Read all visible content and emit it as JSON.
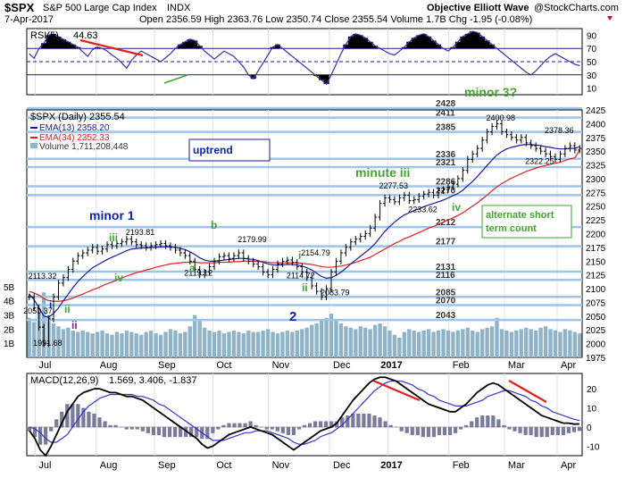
{
  "header": {
    "symbol": "$SPX",
    "name": "S&P 500 Large Cap Index",
    "exchange": "INDX",
    "date": "7-Apr-2017",
    "quote": "Open 2356.59  High 2363.76  Low 2350.74  Close 2355.54  Volume 1.7B  Chg -1.95 (-0.08%)",
    "source": "Objective Elliott Wave",
    "credit": "@StockCharts.com"
  },
  "colors": {
    "price_bar": "#000000",
    "ema13": "#1a1aa0",
    "ema34": "#e02020",
    "volume": "#8fb3c7",
    "rsi": "#3b2fb0",
    "rsi_fill": "#000000",
    "macd": "#000000",
    "macd_signal": "#3535d0",
    "hist": "#7a7a9a",
    "level_line": "#9ec5e8",
    "wave_blue": "#0a24b0",
    "wave_green": "#3fa62c",
    "wave_purple": "#8a1f8a",
    "trend_red": "#e02020",
    "box_border": "#1a1aa0"
  },
  "chart_data": [
    {
      "type": "line",
      "panel": "RSI",
      "title": "RSI(5) 44.63",
      "legend_label": "RSI(5)",
      "legend_value": "44.63",
      "ylim": [
        0,
        100
      ],
      "yticks": [
        10,
        30,
        50,
        70,
        90
      ],
      "reference_lines": [
        30,
        50,
        70
      ],
      "values": [
        62,
        55,
        70,
        78,
        90,
        92,
        88,
        84,
        80,
        76,
        72,
        65,
        58,
        68,
        72,
        70,
        66,
        60,
        55,
        48,
        40,
        52,
        60,
        66,
        62,
        58,
        54,
        50,
        56,
        62,
        70,
        76,
        80,
        84,
        82,
        74,
        66,
        60,
        54,
        60,
        66,
        62,
        58,
        50,
        42,
        30,
        24,
        36,
        48,
        60,
        72,
        76,
        70,
        64,
        58,
        52,
        46,
        40,
        34,
        28,
        22,
        16,
        30,
        46,
        62,
        76,
        88,
        92,
        90,
        86,
        80,
        74,
        70,
        66,
        62,
        60,
        66,
        72,
        80,
        86,
        90,
        92,
        88,
        82,
        76,
        70,
        66,
        72,
        80,
        88,
        92,
        96,
        94,
        88,
        82,
        76,
        70,
        64,
        58,
        52,
        46,
        40,
        34,
        30,
        36,
        44,
        52,
        58,
        62,
        58,
        54,
        50,
        46,
        44
      ]
    },
    {
      "type": "line",
      "panel": "price",
      "title": "$SPX (Daily) 2355.54",
      "legend": [
        {
          "name": "$SPX (Daily)",
          "value": "2355.54"
        },
        {
          "name": "EMA(13)",
          "value": "2358.20"
        },
        {
          "name": "EMA(34)",
          "value": "2352.33"
        },
        {
          "name": "Volume",
          "value": "1,711,208,448"
        }
      ],
      "x_labels": [
        "Jul",
        "Aug",
        "Sep",
        "Oct",
        "Nov",
        "Dec",
        "2017",
        "Feb",
        "Mar",
        "Apr"
      ],
      "ylim": [
        1975,
        2425
      ],
      "yticks": [
        1975,
        2000,
        2025,
        2050,
        2075,
        2100,
        2125,
        2150,
        2175,
        2200,
        2225,
        2250,
        2275,
        2300,
        2325,
        2350,
        2375,
        2400,
        2425
      ],
      "close": [
        2085,
        2065,
        2030,
        2000,
        2045,
        2085,
        2110,
        2120,
        2135,
        2150,
        2160,
        2165,
        2170,
        2175,
        2168,
        2172,
        2180,
        2178,
        2182,
        2185,
        2190,
        2185,
        2180,
        2178,
        2175,
        2178,
        2180,
        2182,
        2178,
        2175,
        2170,
        2165,
        2160,
        2150,
        2135,
        2125,
        2130,
        2140,
        2150,
        2158,
        2160,
        2155,
        2160,
        2165,
        2155,
        2150,
        2145,
        2140,
        2130,
        2125,
        2135,
        2145,
        2150,
        2152,
        2148,
        2140,
        2130,
        2120,
        2105,
        2095,
        2085,
        2100,
        2130,
        2150,
        2165,
        2175,
        2185,
        2190,
        2195,
        2200,
        2210,
        2230,
        2255,
        2265,
        2262,
        2258,
        2265,
        2270,
        2260,
        2262,
        2268,
        2272,
        2275,
        2270,
        2278,
        2280,
        2285,
        2290,
        2300,
        2315,
        2335,
        2345,
        2355,
        2370,
        2385,
        2395,
        2400,
        2385,
        2380,
        2375,
        2370,
        2375,
        2365,
        2360,
        2355,
        2350,
        2345,
        2340,
        2335,
        2345,
        2355,
        2360,
        2352,
        2355
      ],
      "ema13_values": [
        2090,
        2080,
        2065,
        2050,
        2048,
        2055,
        2065,
        2078,
        2090,
        2102,
        2113,
        2122,
        2130,
        2138,
        2143,
        2148,
        2153,
        2157,
        2161,
        2165,
        2169,
        2172,
        2173,
        2174,
        2174,
        2175,
        2175,
        2176,
        2176,
        2176,
        2175,
        2173,
        2171,
        2167,
        2162,
        2156,
        2152,
        2150,
        2150,
        2151,
        2152,
        2153,
        2154,
        2155,
        2155,
        2154,
        2153,
        2151,
        2148,
        2145,
        2143,
        2143,
        2143,
        2144,
        2144,
        2143,
        2141,
        2138,
        2134,
        2128,
        2122,
        2119,
        2120,
        2124,
        2130,
        2137,
        2145,
        2152,
        2159,
        2166,
        2173,
        2182,
        2193,
        2204,
        2213,
        2221,
        2228,
        2234,
        2238,
        2242,
        2245,
        2249,
        2252,
        2255,
        2258,
        2261,
        2265,
        2269,
        2273,
        2279,
        2287,
        2295,
        2304,
        2314,
        2324,
        2334,
        2343,
        2349,
        2354,
        2357,
        2359,
        2361,
        2362,
        2362,
        2361,
        2360,
        2358,
        2357,
        2355,
        2354,
        2354,
        2355,
        2355,
        2358
      ],
      "ema34_values": [
        2095,
        2092,
        2088,
        2082,
        2078,
        2077,
        2077,
        2078,
        2080,
        2083,
        2087,
        2090,
        2094,
        2098,
        2101,
        2105,
        2109,
        2112,
        2116,
        2119,
        2123,
        2126,
        2129,
        2131,
        2134,
        2136,
        2139,
        2141,
        2143,
        2145,
        2146,
        2147,
        2148,
        2148,
        2148,
        2147,
        2147,
        2147,
        2147,
        2148,
        2148,
        2148,
        2149,
        2149,
        2150,
        2150,
        2150,
        2149,
        2149,
        2148,
        2147,
        2147,
        2147,
        2147,
        2147,
        2147,
        2146,
        2145,
        2144,
        2142,
        2140,
        2139,
        2139,
        2140,
        2141,
        2143,
        2145,
        2148,
        2151,
        2154,
        2157,
        2162,
        2167,
        2172,
        2177,
        2182,
        2186,
        2191,
        2194,
        2198,
        2202,
        2206,
        2210,
        2213,
        2217,
        2221,
        2225,
        2229,
        2233,
        2238,
        2244,
        2250,
        2256,
        2263,
        2270,
        2278,
        2285,
        2291,
        2296,
        2301,
        2305,
        2309,
        2313,
        2316,
        2319,
        2322,
        2324,
        2326,
        2328,
        2330,
        2333,
        2336,
        2338,
        2352
      ],
      "volume_scale_labels": [
        "5B",
        "4B",
        "3B",
        "2B",
        "1B"
      ],
      "volume_billions": [
        2.8,
        2.5,
        3.2,
        4.6,
        3.0,
        2.4,
        2.2,
        2.0,
        2.1,
        1.9,
        1.8,
        1.9,
        1.8,
        1.7,
        1.8,
        1.9,
        1.7,
        1.6,
        1.8,
        1.7,
        1.9,
        1.8,
        1.7,
        1.6,
        1.8,
        1.9,
        1.7,
        1.6,
        1.8,
        2.0,
        1.9,
        1.7,
        1.8,
        2.2,
        3.0,
        2.6,
        2.1,
        1.9,
        1.8,
        1.9,
        1.7,
        1.8,
        1.9,
        1.8,
        1.7,
        1.9,
        1.8,
        1.8,
        1.9,
        2.0,
        1.8,
        1.7,
        1.8,
        1.9,
        1.8,
        1.9,
        2.0,
        2.1,
        2.3,
        2.4,
        2.6,
        2.8,
        3.1,
        2.7,
        2.4,
        2.2,
        2.1,
        2.0,
        2.2,
        2.1,
        2.0,
        2.3,
        2.4,
        2.2,
        1.9,
        1.6,
        1.4,
        1.8,
        2.0,
        1.9,
        1.8,
        1.9,
        2.0,
        1.8,
        1.9,
        2.0,
        1.9,
        1.8,
        1.9,
        2.0,
        2.1,
        1.9,
        1.8,
        2.0,
        2.1,
        2.2,
        2.8,
        2.0,
        1.9,
        1.8,
        1.9,
        2.0,
        2.1,
        2.0,
        1.9,
        2.1,
        2.2,
        2.0,
        1.9,
        1.8,
        2.0,
        1.9,
        1.8,
        1.7
      ],
      "levels": [
        2428,
        2411,
        2385,
        2336,
        2321,
        2286,
        2270,
        2212,
        2177,
        2131,
        2116,
        2085,
        2070,
        2043
      ],
      "point_labels": [
        {
          "text": "2050.37",
          "i": 1,
          "y": 2050
        },
        {
          "text": "1991.68",
          "i": 3,
          "y": 1991
        },
        {
          "text": "2113.32",
          "i": 2,
          "y": 2113
        },
        {
          "text": "2193.81",
          "i": 22,
          "y": 2193
        },
        {
          "text": "2119.12",
          "i": 34,
          "y": 2119
        },
        {
          "text": "2179.99",
          "i": 45,
          "y": 2180
        },
        {
          "text": "2114.72",
          "i": 55,
          "y": 2114
        },
        {
          "text": "2154.79",
          "i": 58,
          "y": 2155
        },
        {
          "text": "2083.79",
          "i": 62,
          "y": 2083
        },
        {
          "text": "2277.53",
          "i": 74,
          "y": 2277
        },
        {
          "text": "2233.62",
          "i": 80,
          "y": 2234
        },
        {
          "text": "2400.98",
          "i": 96,
          "y": 2401
        },
        {
          "text": "2378.36",
          "i": 108,
          "y": 2378
        },
        {
          "text": "2322.25",
          "i": 104,
          "y": 2322
        }
      ]
    },
    {
      "type": "line",
      "panel": "MACD",
      "title": "MACD(12,26,9) 1.569, 3.406, -1.837",
      "legend_label": "MACD(12,26,9)",
      "legend_values": "1.569, 3.406, -1.837",
      "ylim": [
        -15,
        28
      ],
      "yticks": [
        -10,
        0,
        10,
        20
      ],
      "macd": [
        -2,
        -6,
        -12,
        -15,
        -10,
        -4,
        2,
        8,
        12,
        16,
        18,
        19,
        20,
        20,
        19,
        18,
        18,
        17,
        16,
        16,
        15,
        14,
        12,
        10,
        8,
        6,
        4,
        2,
        0,
        -2,
        -4,
        -6,
        -9,
        -11,
        -10,
        -8,
        -6,
        -4,
        -3,
        -2,
        -1,
        0,
        -1,
        -2,
        -3,
        -4,
        -6,
        -8,
        -10,
        -12,
        -10,
        -8,
        -6,
        -4,
        -2,
        -1,
        0,
        2,
        6,
        10,
        14,
        17,
        20,
        23,
        25,
        26,
        26,
        25,
        24,
        22,
        20,
        18,
        16,
        14,
        12,
        11,
        10,
        9,
        8,
        8,
        10,
        12,
        15,
        18,
        20,
        22,
        23,
        22,
        20,
        18,
        16,
        14,
        12,
        10,
        8,
        6,
        5,
        4,
        3,
        2,
        2,
        1.5,
        1.6
      ],
      "signal": [
        0,
        -1,
        -3,
        -6,
        -8,
        -8,
        -6,
        -4,
        0,
        4,
        8,
        11,
        13,
        15,
        16,
        17,
        17,
        17,
        17,
        17,
        16,
        16,
        15,
        14,
        12,
        11,
        9,
        7,
        5,
        3,
        1,
        -1,
        -3,
        -5,
        -7,
        -7,
        -7,
        -6,
        -5,
        -4,
        -3,
        -3,
        -2,
        -2,
        -2,
        -3,
        -4,
        -5,
        -6,
        -8,
        -9,
        -9,
        -8,
        -7,
        -5,
        -4,
        -3,
        -1,
        1,
        4,
        7,
        10,
        13,
        16,
        19,
        21,
        23,
        24,
        24,
        24,
        23,
        22,
        20,
        19,
        17,
        16,
        14,
        13,
        12,
        11,
        11,
        11,
        12,
        13,
        14,
        16,
        17,
        18,
        19,
        19,
        18,
        17,
        16,
        14,
        13,
        11,
        10,
        8,
        7,
        6,
        5,
        4,
        3.4
      ]
    }
  ],
  "annotations": {
    "box_uptrend": "uptrend",
    "box_alternate": "alternate short term count",
    "waves": [
      {
        "text": "minor 1"
      },
      {
        "text": "iii"
      },
      {
        "text": "iv"
      },
      {
        "text": "ii"
      },
      {
        "text": "i"
      },
      {
        "text": "ii"
      },
      {
        "text": "b"
      },
      {
        "text": "a"
      },
      {
        "text": "2"
      },
      {
        "text": "i"
      },
      {
        "text": "ii"
      },
      {
        "text": "minute iii"
      },
      {
        "text": "iv"
      },
      {
        "text": "minor 3?"
      }
    ]
  }
}
